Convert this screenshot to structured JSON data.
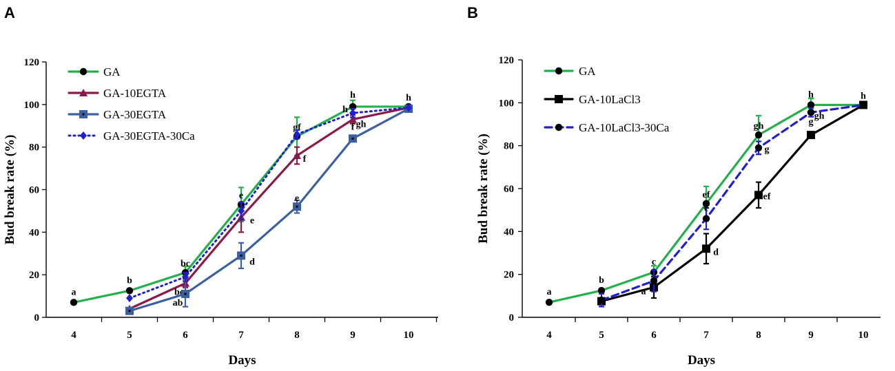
{
  "chart_data": [
    {
      "panel": "A",
      "type": "line",
      "xlabel": "Days",
      "ylabel": "Bud break rate (%)",
      "categories": [
        "4",
        "5",
        "6",
        "7",
        "8",
        "9",
        "10"
      ],
      "ylim": [
        0,
        120
      ],
      "yticks": [
        "0",
        "20",
        "40",
        "60",
        "80",
        "100",
        "120"
      ],
      "legend_position": "top-left",
      "series": [
        {
          "name": "GA",
          "color": "#22b04b",
          "dash": "solid",
          "marker": "circle",
          "marker_color": "#000000",
          "x": [
            4,
            5,
            6,
            7,
            8,
            9,
            10
          ],
          "values": [
            7,
            12.5,
            21,
            53,
            85,
            99,
            99
          ],
          "errors": [
            0,
            0,
            3,
            8,
            9,
            3,
            0
          ],
          "letters": [
            "a",
            "b",
            "bc",
            "e",
            "gf",
            "h",
            "h"
          ]
        },
        {
          "name": "GA-10EGTA",
          "color": "#8b1a4a",
          "dash": "solid",
          "marker": "triangle",
          "marker_color": "#8b1a4a",
          "x": [
            5,
            6,
            7,
            8,
            9,
            10
          ],
          "values": [
            4,
            16,
            47,
            76,
            93,
            98.5
          ],
          "errors": [
            0,
            2,
            7,
            4,
            2,
            0
          ],
          "letters": [
            "a",
            "bc",
            "e",
            "f",
            "gh",
            ""
          ]
        },
        {
          "name": "GA-30EGTA",
          "color": "#3c5fa0",
          "dash": "solid",
          "marker": "square",
          "marker_color": "#3c5fa0",
          "x": [
            5,
            6,
            7,
            8,
            9,
            10
          ],
          "values": [
            3,
            11,
            29,
            52,
            84,
            98
          ],
          "errors": [
            0,
            6,
            6,
            3,
            0,
            0
          ],
          "letters": [
            "a",
            "ab",
            "d",
            "e",
            "f",
            ""
          ]
        },
        {
          "name": "GA-30EGTA-30Ca",
          "color": "#1f1fd1",
          "dash": "dotted",
          "marker": "diamond",
          "marker_color": "#1f1fd1",
          "x": [
            5,
            6,
            7,
            8,
            9,
            10
          ],
          "values": [
            9,
            19,
            50,
            86,
            96,
            98.5
          ],
          "errors": [
            0,
            2,
            4,
            2,
            2,
            0
          ],
          "letters": [
            "",
            "",
            "",
            "g",
            "h",
            ""
          ]
        }
      ]
    },
    {
      "panel": "B",
      "type": "line",
      "xlabel": "Days",
      "ylabel": "Bud break rate (%)",
      "categories": [
        "4",
        "5",
        "6",
        "7",
        "8",
        "9",
        "10"
      ],
      "ylim": [
        0,
        120
      ],
      "yticks": [
        "0",
        "20",
        "40",
        "60",
        "80",
        "100",
        "120"
      ],
      "legend_position": "top-left",
      "series": [
        {
          "name": "GA",
          "color": "#22b04b",
          "dash": "solid",
          "marker": "circle",
          "marker_color": "#000000",
          "x": [
            4,
            5,
            6,
            7,
            8,
            9,
            10
          ],
          "values": [
            7,
            12.5,
            21,
            53,
            85,
            99,
            99
          ],
          "errors": [
            0,
            0,
            3,
            8,
            9,
            3,
            0
          ],
          "letters": [
            "a",
            "b",
            "c",
            "ef",
            "gh",
            "h",
            "h"
          ]
        },
        {
          "name": "GA-10LaCl3",
          "color": "#000000",
          "dash": "solid",
          "marker": "square",
          "marker_color": "#000000",
          "x": [
            5,
            6,
            7,
            8,
            9,
            10
          ],
          "values": [
            7.5,
            14,
            32,
            57,
            85,
            99
          ],
          "errors": [
            0,
            5,
            7,
            6,
            0,
            0
          ],
          "letters": [
            "a",
            "a",
            "d",
            "ef",
            "g",
            ""
          ]
        },
        {
          "name": "GA-10LaCl3-30Ca",
          "color": "#1f1fd1",
          "dash": "dashed",
          "marker": "circle",
          "marker_color": "#000000",
          "x": [
            5,
            6,
            7,
            8,
            9,
            10
          ],
          "values": [
            8,
            17,
            46,
            79,
            95.5,
            99
          ],
          "errors": [
            3,
            5,
            5,
            3,
            2,
            0
          ],
          "letters": [
            "",
            "bc",
            "e",
            "g",
            "gh",
            ""
          ]
        }
      ]
    }
  ]
}
